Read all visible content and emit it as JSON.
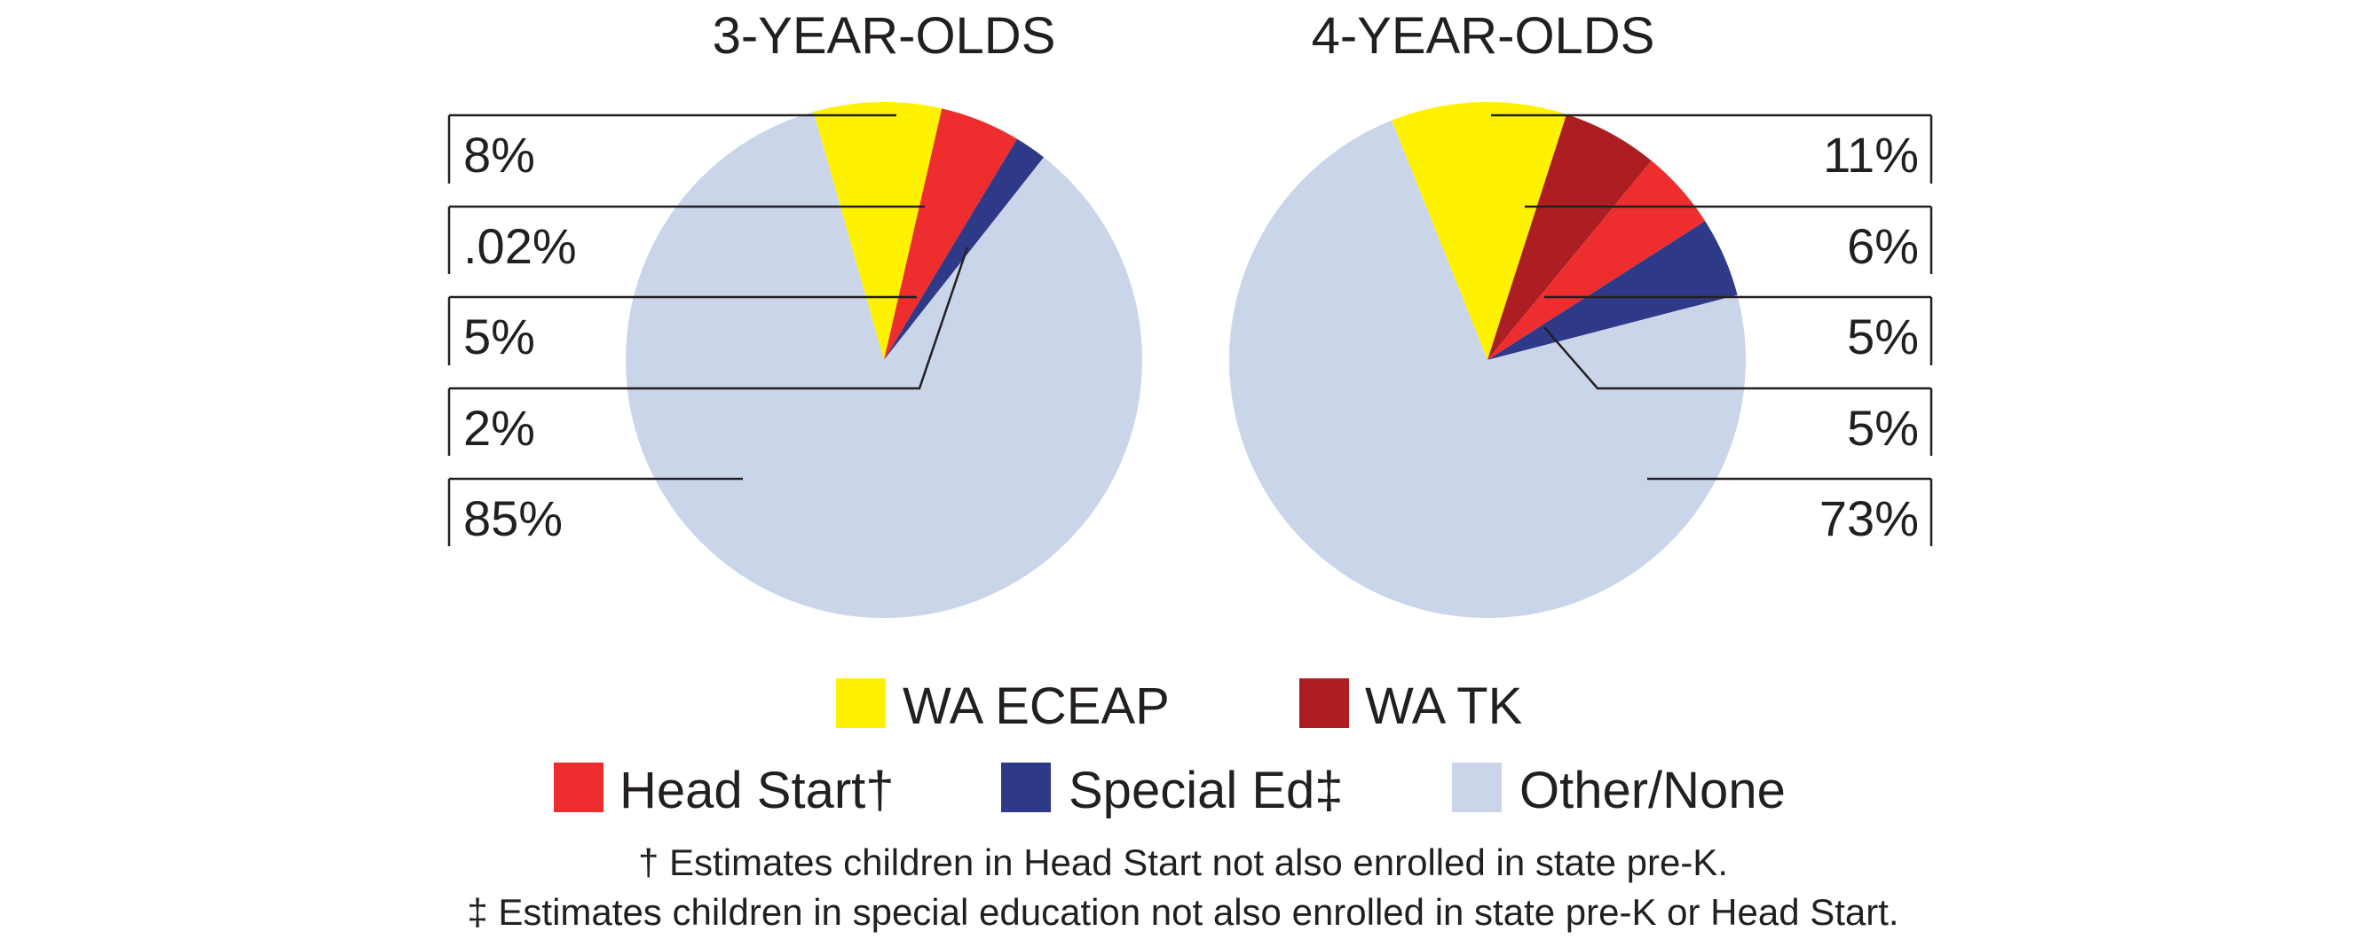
{
  "colors": {
    "wa_eceap": "#fff200",
    "wa_tk": "#ad1e23",
    "head_start": "#ee2d2f",
    "special_ed": "#2e3a87",
    "other_none": "#cbd5ea",
    "text": "#231f20",
    "leader": "#231f20"
  },
  "chart_data": [
    {
      "type": "pie",
      "title": "3-YEAR-OLDS",
      "slices": [
        {
          "category": "WA ECEAP",
          "value": 8,
          "label": "8%"
        },
        {
          "category": "WA TK",
          "value": 0.02,
          "label": ".02%"
        },
        {
          "category": "Head Start",
          "value": 5,
          "label": "5%"
        },
        {
          "category": "Special Ed",
          "value": 2,
          "label": "2%"
        },
        {
          "category": "Other/None",
          "value": 85,
          "label": "85%"
        }
      ]
    },
    {
      "type": "pie",
      "title": "4-YEAR-OLDS",
      "slices": [
        {
          "category": "WA ECEAP",
          "value": 11,
          "label": "11%"
        },
        {
          "category": "WA TK",
          "value": 6,
          "label": "6%"
        },
        {
          "category": "Head Start",
          "value": 5,
          "label": "5%"
        },
        {
          "category": "Special Ed",
          "value": 5,
          "label": "5%"
        },
        {
          "category": "Other/None",
          "value": 73,
          "label": "73%"
        }
      ]
    }
  ],
  "legend": {
    "items": [
      {
        "key": "wa_eceap",
        "label": "WA ECEAP"
      },
      {
        "key": "wa_tk",
        "label": "WA TK"
      },
      {
        "key": "head_start",
        "label": "Head Start†"
      },
      {
        "key": "special_ed",
        "label": "Special Ed‡"
      },
      {
        "key": "other_none",
        "label": "Other/None"
      }
    ]
  },
  "footnotes": [
    "† Estimates children in Head Start not also enrolled in state pre-K.",
    "‡ Estimates children in special education not also enrolled in state pre-K or Head Start."
  ]
}
